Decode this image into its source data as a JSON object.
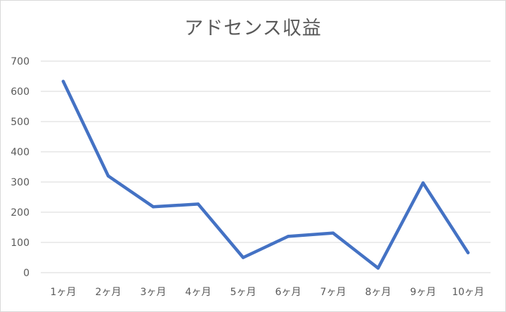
{
  "chart_data": {
    "type": "line",
    "title": "アドセンス収益",
    "xlabel": "",
    "ylabel": "",
    "categories": [
      "1ヶ月",
      "2ヶ月",
      "3ヶ月",
      "4ヶ月",
      "5ヶ月",
      "6ヶ月",
      "7ヶ月",
      "8ヶ月",
      "9ヶ月",
      "10ヶ月"
    ],
    "series": [
      {
        "values": [
          633,
          320,
          218,
          227,
          50,
          120,
          131,
          15,
          297,
          66
        ]
      }
    ],
    "ylim": [
      0,
      700
    ],
    "yticks": [
      "0",
      "100",
      "200",
      "300",
      "400",
      "500",
      "600",
      "700"
    ],
    "grid": true,
    "legend": "none",
    "line_color": "#4472c4",
    "grid_color": "#d9d9d9",
    "text_color": "#595959"
  }
}
